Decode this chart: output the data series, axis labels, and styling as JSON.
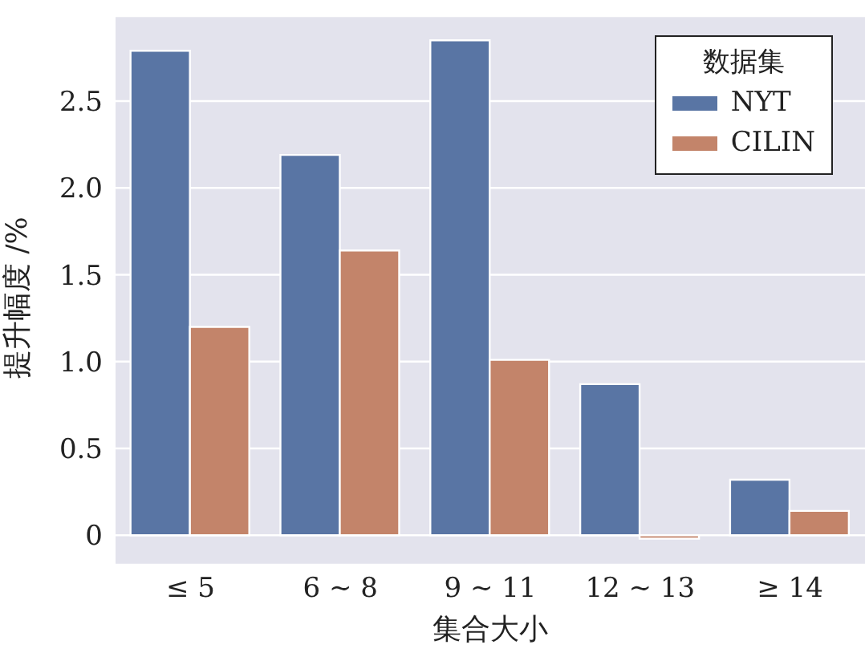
{
  "chart_data": {
    "type": "bar",
    "xlabel": "集合大小",
    "ylabel": "提升幅度 /%",
    "legend_title": "数据集",
    "categories": [
      "≤ 5",
      "6 ~ 8",
      "9 ~ 11",
      "12 ~ 13",
      "≥ 14"
    ],
    "series": [
      {
        "name": "NYT",
        "color": "#5975a4",
        "values": [
          2.79,
          2.19,
          2.85,
          0.87,
          0.32
        ]
      },
      {
        "name": "CILIN",
        "color": "#c3846a",
        "values": [
          1.2,
          1.64,
          1.01,
          -0.02,
          0.14
        ]
      }
    ],
    "ylim": [
      -0.17,
      2.99
    ],
    "yticks": [
      {
        "value": 0,
        "label": "0"
      },
      {
        "value": 0.5,
        "label": "0.5"
      },
      {
        "value": 1,
        "label": "1.0"
      },
      {
        "value": 1.5,
        "label": "1.5"
      },
      {
        "value": 2,
        "label": "2.0"
      },
      {
        "value": 2.5,
        "label": "2.5"
      }
    ],
    "grid": "y",
    "legend": "top right"
  }
}
